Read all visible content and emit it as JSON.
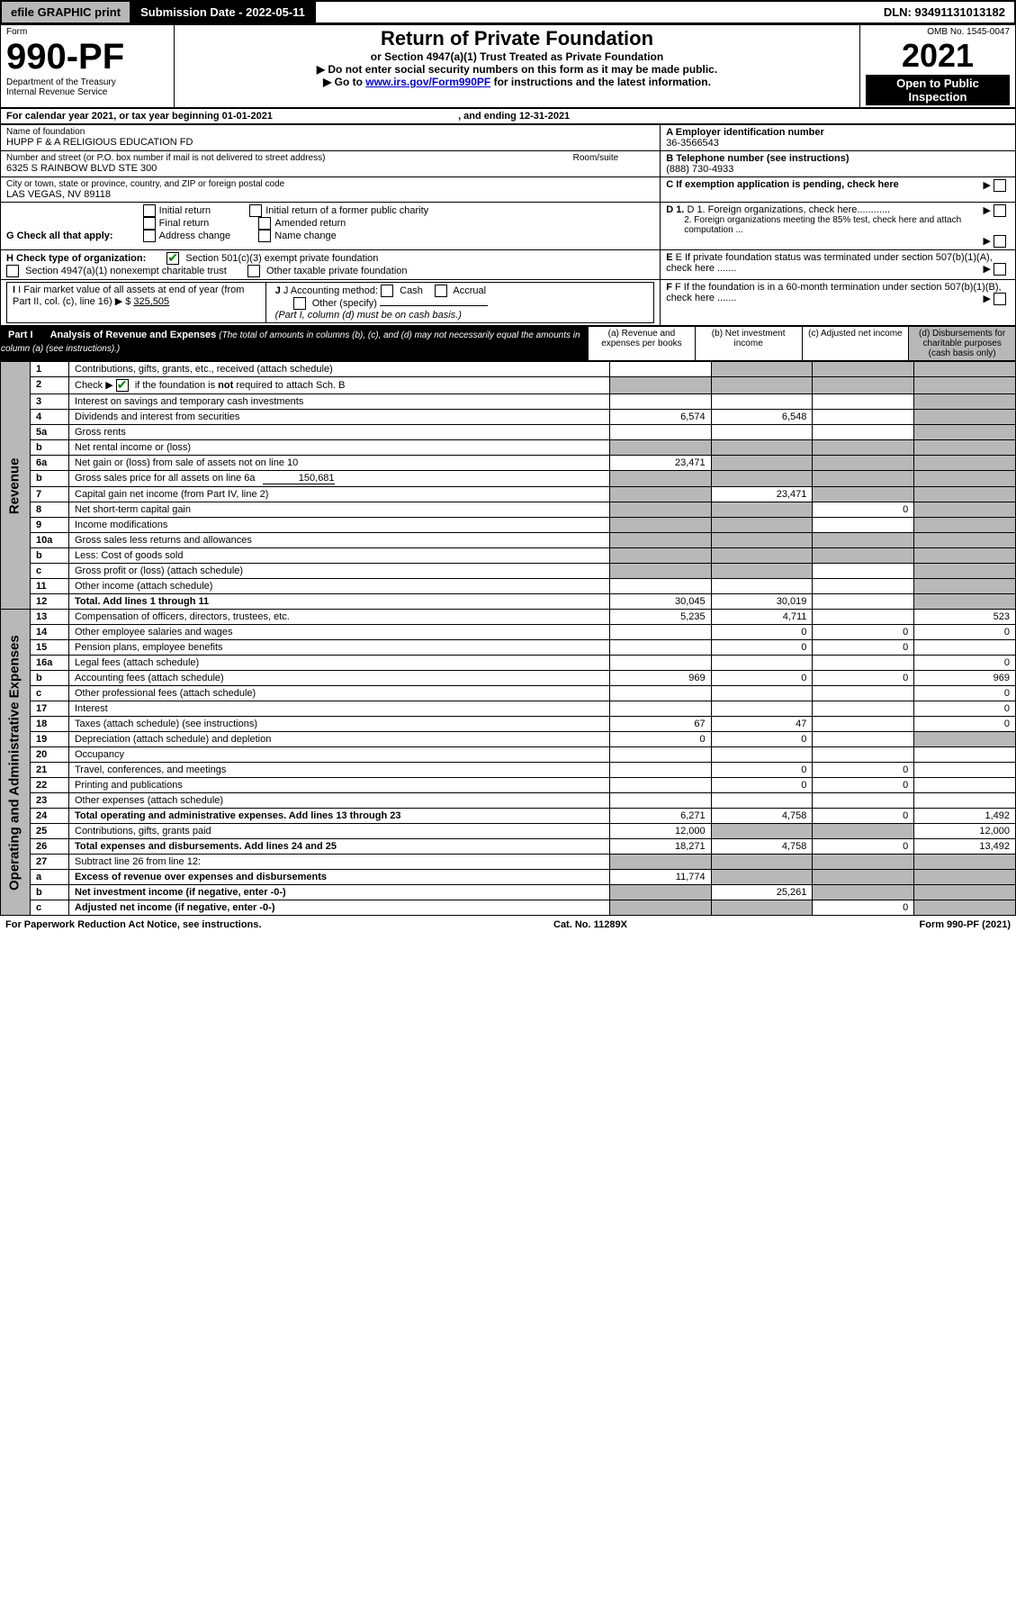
{
  "topbar": {
    "efile": "efile GRAPHIC print",
    "submission_label": "Submission Date - 2022-05-11",
    "dln": "DLN: 93491131013182"
  },
  "header": {
    "form_word": "Form",
    "form_number": "990-PF",
    "dept1": "Department of the Treasury",
    "dept2": "Internal Revenue Service",
    "title": "Return of Private Foundation",
    "subtitle": "or Section 4947(a)(1) Trust Treated as Private Foundation",
    "note1": "▶ Do not enter social security numbers on this form as it may be made public.",
    "note2_prefix": "▶ Go to ",
    "note2_link": "www.irs.gov/Form990PF",
    "note2_suffix": " for instructions and the latest information.",
    "omb": "OMB No. 1545-0047",
    "year": "2021",
    "open": "Open to Public Inspection"
  },
  "calendar": {
    "text1": "For calendar year 2021, or tax year beginning ",
    "begin": "01-01-2021",
    "text2": " , and ending ",
    "end": "12-31-2021"
  },
  "info": {
    "name_label": "Name of foundation",
    "name": "HUPP F & A RELIGIOUS EDUCATION FD",
    "addr_label": "Number and street (or P.O. box number if mail is not delivered to street address)",
    "room_label": "Room/suite",
    "addr": "6325 S RAINBOW BLVD STE 300",
    "city_label": "City or town, state or province, country, and ZIP or foreign postal code",
    "city": "LAS VEGAS, NV  89118",
    "ein_label": "A Employer identification number",
    "ein": "36-3566543",
    "phone_label": "B Telephone number (see instructions)",
    "phone": "(888) 730-4933",
    "c_label": "C If exemption application is pending, check here",
    "d1": "D 1. Foreign organizations, check here............",
    "d2": "2. Foreign organizations meeting the 85% test, check here and attach computation ...",
    "e": "E If private foundation status was terminated under section 507(b)(1)(A), check here .......",
    "f": "F If the foundation is in a 60-month termination under section 507(b)(1)(B), check here .......",
    "g_label": "G Check all that apply:",
    "g_opts": [
      "Initial return",
      "Final return",
      "Address change",
      "Initial return of a former public charity",
      "Amended return",
      "Name change"
    ],
    "h_label": "H Check type of organization:",
    "h_opt1": "Section 501(c)(3) exempt private foundation",
    "h_opt2": "Section 4947(a)(1) nonexempt charitable trust",
    "h_opt3": "Other taxable private foundation",
    "i_label": "I Fair market value of all assets at end of year (from Part II, col. (c), line 16)",
    "i_value": "325,505",
    "j_label": "J Accounting method:",
    "j_cash": "Cash",
    "j_accrual": "Accrual",
    "j_other": "Other (specify)",
    "j_note": "(Part I, column (d) must be on cash basis.)"
  },
  "part1": {
    "label": "Part I",
    "title": "Analysis of Revenue and Expenses",
    "title_note": " (The total of amounts in columns (b), (c), and (d) may not necessarily equal the amounts in column (a) (see instructions).)",
    "col_a": "(a) Revenue and expenses per books",
    "col_b": "(b) Net investment income",
    "col_c": "(c) Adjusted net income",
    "col_d": "(d) Disbursements for charitable purposes (cash basis only)"
  },
  "sections": {
    "revenue": "Revenue",
    "expenses": "Operating and Administrative Expenses"
  },
  "rows": [
    {
      "n": "1",
      "t": "Contributions, gifts, grants, etc., received (attach schedule)",
      "a": "",
      "b": "shade",
      "c": "shade",
      "d": "shade"
    },
    {
      "n": "2",
      "t": "Check ▶ ☑ if the foundation is not required to attach Sch. B",
      "a": "shade",
      "b": "shade",
      "c": "shade",
      "d": "shade",
      "check": true
    },
    {
      "n": "3",
      "t": "Interest on savings and temporary cash investments",
      "a": "",
      "b": "",
      "c": "",
      "d": "shade"
    },
    {
      "n": "4",
      "t": "Dividends and interest from securities",
      "a": "6,574",
      "b": "6,548",
      "c": "",
      "d": "shade"
    },
    {
      "n": "5a",
      "t": "Gross rents",
      "a": "",
      "b": "",
      "c": "",
      "d": "shade"
    },
    {
      "n": "b",
      "t": "Net rental income or (loss)",
      "a": "shade",
      "b": "shade",
      "c": "shade",
      "d": "shade",
      "under": true
    },
    {
      "n": "6a",
      "t": "Net gain or (loss) from sale of assets not on line 10",
      "a": "23,471",
      "b": "shade",
      "c": "shade",
      "d": "shade"
    },
    {
      "n": "b",
      "t": "Gross sales price for all assets on line 6a",
      "extra": "150,681",
      "a": "shade",
      "b": "shade",
      "c": "shade",
      "d": "shade"
    },
    {
      "n": "7",
      "t": "Capital gain net income (from Part IV, line 2)",
      "a": "shade",
      "b": "23,471",
      "c": "shade",
      "d": "shade"
    },
    {
      "n": "8",
      "t": "Net short-term capital gain",
      "a": "shade",
      "b": "shade",
      "c": "0",
      "d": "shade"
    },
    {
      "n": "9",
      "t": "Income modifications",
      "a": "shade",
      "b": "shade",
      "c": "",
      "d": "shade"
    },
    {
      "n": "10a",
      "t": "Gross sales less returns and allowances",
      "a": "shade",
      "b": "shade",
      "c": "shade",
      "d": "shade",
      "under": true
    },
    {
      "n": "b",
      "t": "Less: Cost of goods sold",
      "a": "shade",
      "b": "shade",
      "c": "shade",
      "d": "shade",
      "under": true
    },
    {
      "n": "c",
      "t": "Gross profit or (loss) (attach schedule)",
      "a": "shade",
      "b": "shade",
      "c": "",
      "d": "shade"
    },
    {
      "n": "11",
      "t": "Other income (attach schedule)",
      "a": "",
      "b": "",
      "c": "",
      "d": "shade"
    },
    {
      "n": "12",
      "t": "Total. Add lines 1 through 11",
      "bold": true,
      "a": "30,045",
      "b": "30,019",
      "c": "",
      "d": "shade"
    }
  ],
  "exp_rows": [
    {
      "n": "13",
      "t": "Compensation of officers, directors, trustees, etc.",
      "a": "5,235",
      "b": "4,711",
      "c": "",
      "d": "523"
    },
    {
      "n": "14",
      "t": "Other employee salaries and wages",
      "a": "",
      "b": "0",
      "c": "0",
      "d": "0"
    },
    {
      "n": "15",
      "t": "Pension plans, employee benefits",
      "a": "",
      "b": "0",
      "c": "0",
      "d": ""
    },
    {
      "n": "16a",
      "t": "Legal fees (attach schedule)",
      "a": "",
      "b": "",
      "c": "",
      "d": "0"
    },
    {
      "n": "b",
      "t": "Accounting fees (attach schedule)",
      "a": "969",
      "b": "0",
      "c": "0",
      "d": "969"
    },
    {
      "n": "c",
      "t": "Other professional fees (attach schedule)",
      "a": "",
      "b": "",
      "c": "",
      "d": "0"
    },
    {
      "n": "17",
      "t": "Interest",
      "a": "",
      "b": "",
      "c": "",
      "d": "0"
    },
    {
      "n": "18",
      "t": "Taxes (attach schedule) (see instructions)",
      "a": "67",
      "b": "47",
      "c": "",
      "d": "0"
    },
    {
      "n": "19",
      "t": "Depreciation (attach schedule) and depletion",
      "a": "0",
      "b": "0",
      "c": "",
      "d": "shade"
    },
    {
      "n": "20",
      "t": "Occupancy",
      "a": "",
      "b": "",
      "c": "",
      "d": ""
    },
    {
      "n": "21",
      "t": "Travel, conferences, and meetings",
      "a": "",
      "b": "0",
      "c": "0",
      "d": ""
    },
    {
      "n": "22",
      "t": "Printing and publications",
      "a": "",
      "b": "0",
      "c": "0",
      "d": ""
    },
    {
      "n": "23",
      "t": "Other expenses (attach schedule)",
      "a": "",
      "b": "",
      "c": "",
      "d": ""
    },
    {
      "n": "24",
      "t": "Total operating and administrative expenses. Add lines 13 through 23",
      "bold": true,
      "a": "6,271",
      "b": "4,758",
      "c": "0",
      "d": "1,492"
    },
    {
      "n": "25",
      "t": "Contributions, gifts, grants paid",
      "a": "12,000",
      "b": "shade",
      "c": "shade",
      "d": "12,000"
    },
    {
      "n": "26",
      "t": "Total expenses and disbursements. Add lines 24 and 25",
      "bold": true,
      "a": "18,271",
      "b": "4,758",
      "c": "0",
      "d": "13,492"
    },
    {
      "n": "27",
      "t": "Subtract line 26 from line 12:",
      "a": "shade",
      "b": "shade",
      "c": "shade",
      "d": "shade"
    },
    {
      "n": "a",
      "t": "Excess of revenue over expenses and disbursements",
      "bold": true,
      "a": "11,774",
      "b": "shade",
      "c": "shade",
      "d": "shade"
    },
    {
      "n": "b",
      "t": "Net investment income (if negative, enter -0-)",
      "bold": true,
      "a": "shade",
      "b": "25,261",
      "c": "shade",
      "d": "shade"
    },
    {
      "n": "c",
      "t": "Adjusted net income (if negative, enter -0-)",
      "bold": true,
      "a": "shade",
      "b": "shade",
      "c": "0",
      "d": "shade"
    }
  ],
  "footer": {
    "left": "For Paperwork Reduction Act Notice, see instructions.",
    "mid": "Cat. No. 11289X",
    "right": "Form 990-PF (2021)"
  },
  "colors": {
    "shade": "#b8b8b8",
    "link": "#0000cc",
    "check": "#008000"
  }
}
